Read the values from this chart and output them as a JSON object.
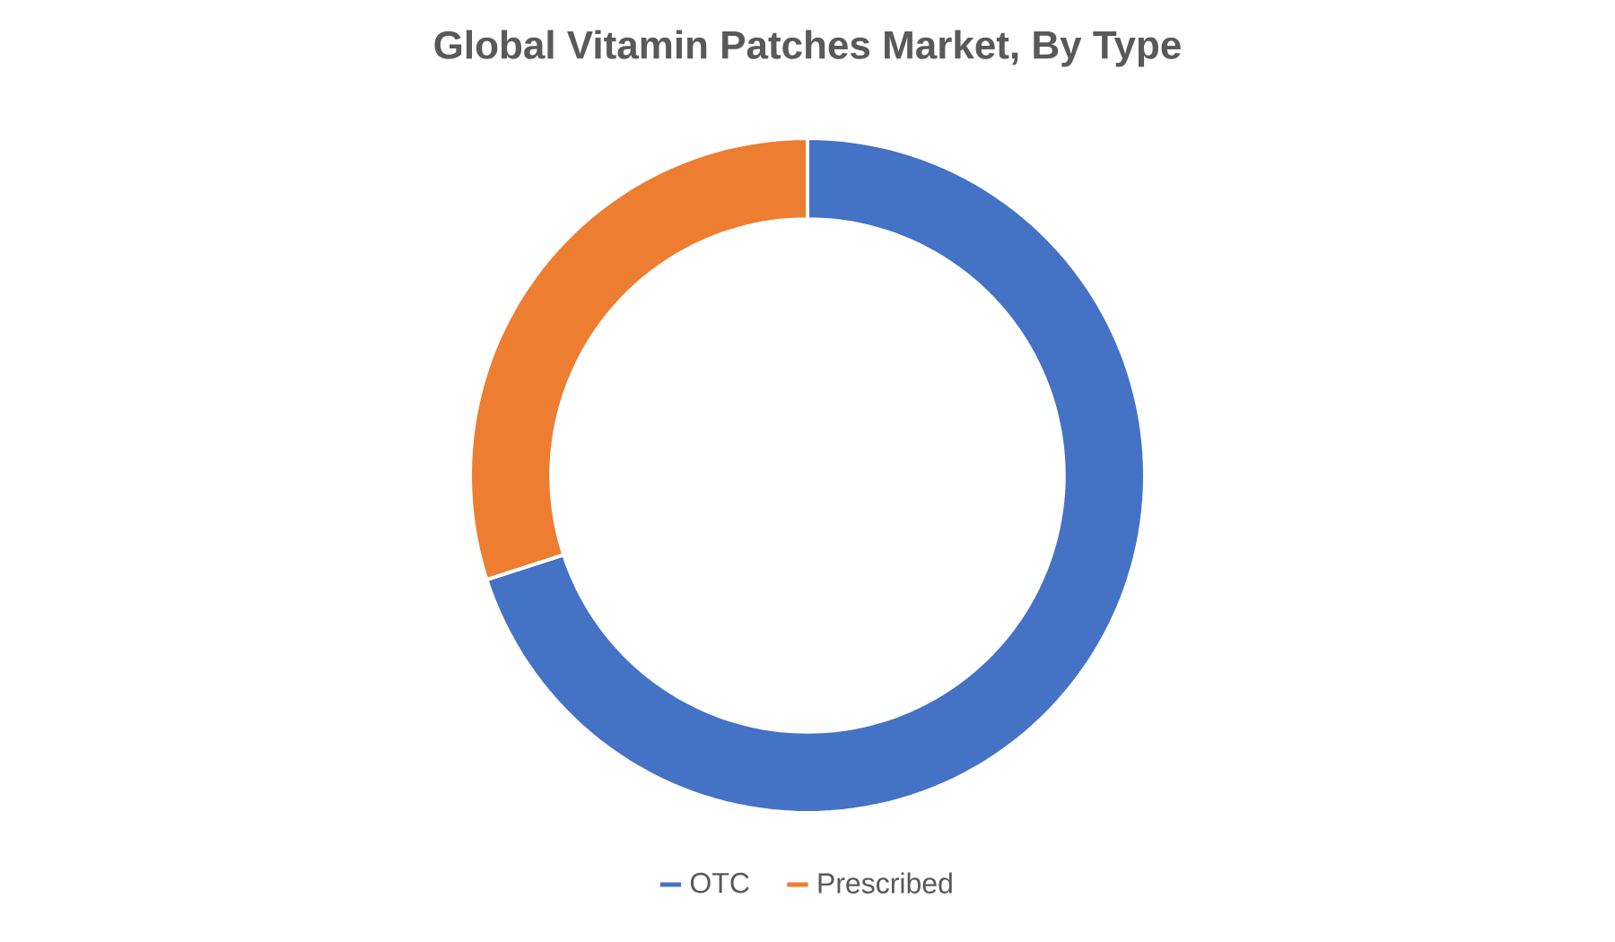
{
  "chart_data": {
    "type": "donut",
    "title": "Global Vitamin Patches Market, By Type",
    "categories": [
      "OTC",
      "Prescribed"
    ],
    "values": [
      70,
      30
    ],
    "colors": [
      "#4472c4",
      "#ed7d31"
    ],
    "legend": "bottom"
  }
}
